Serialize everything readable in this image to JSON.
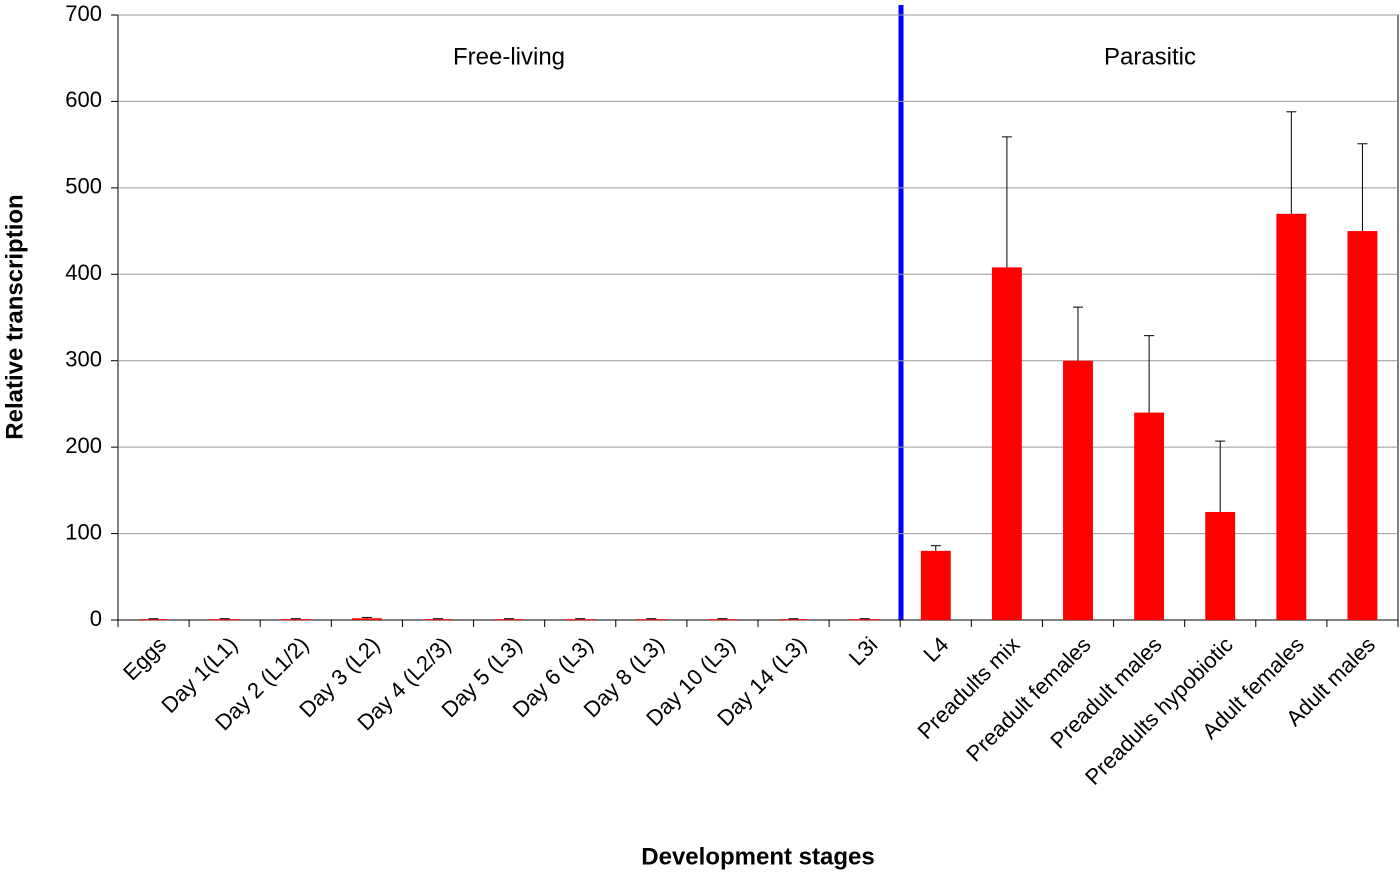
{
  "chart_data": {
    "type": "bar",
    "x_label": "Development stages",
    "y_label": "Relative transcription",
    "annotations": [
      "Free-living",
      "Parasitic"
    ],
    "categories": [
      "Eggs",
      "Day 1(L1)",
      "Day 2 (L1/2)",
      "Day 3 (L2)",
      "Day 4 (L2/3)",
      "Day 5 (L3)",
      "Day 6 (L3)",
      "Day 8 (L3)",
      "Day 10 (L3)",
      "Day 14 (L3)",
      "L3i",
      "L4",
      "Preadults mix",
      "Preadult females",
      "Preadult males",
      "Preadults hypobiotic",
      "Adult females",
      "Adult males"
    ],
    "values": [
      1,
      1,
      1,
      2,
      1,
      1,
      1,
      1,
      1,
      1,
      1,
      80,
      408,
      300,
      240,
      125,
      470,
      450
    ],
    "errors": [
      0.5,
      0.5,
      0.5,
      1,
      0.5,
      0.5,
      0.5,
      0.5,
      0.5,
      0.5,
      0.5,
      6,
      151,
      62,
      89,
      82,
      118,
      101
    ],
    "color": "#ff0000",
    "ylim": [
      0,
      700
    ],
    "yticks": [
      0,
      100,
      200,
      300,
      400,
      500,
      600,
      700
    ],
    "grid": true
  }
}
